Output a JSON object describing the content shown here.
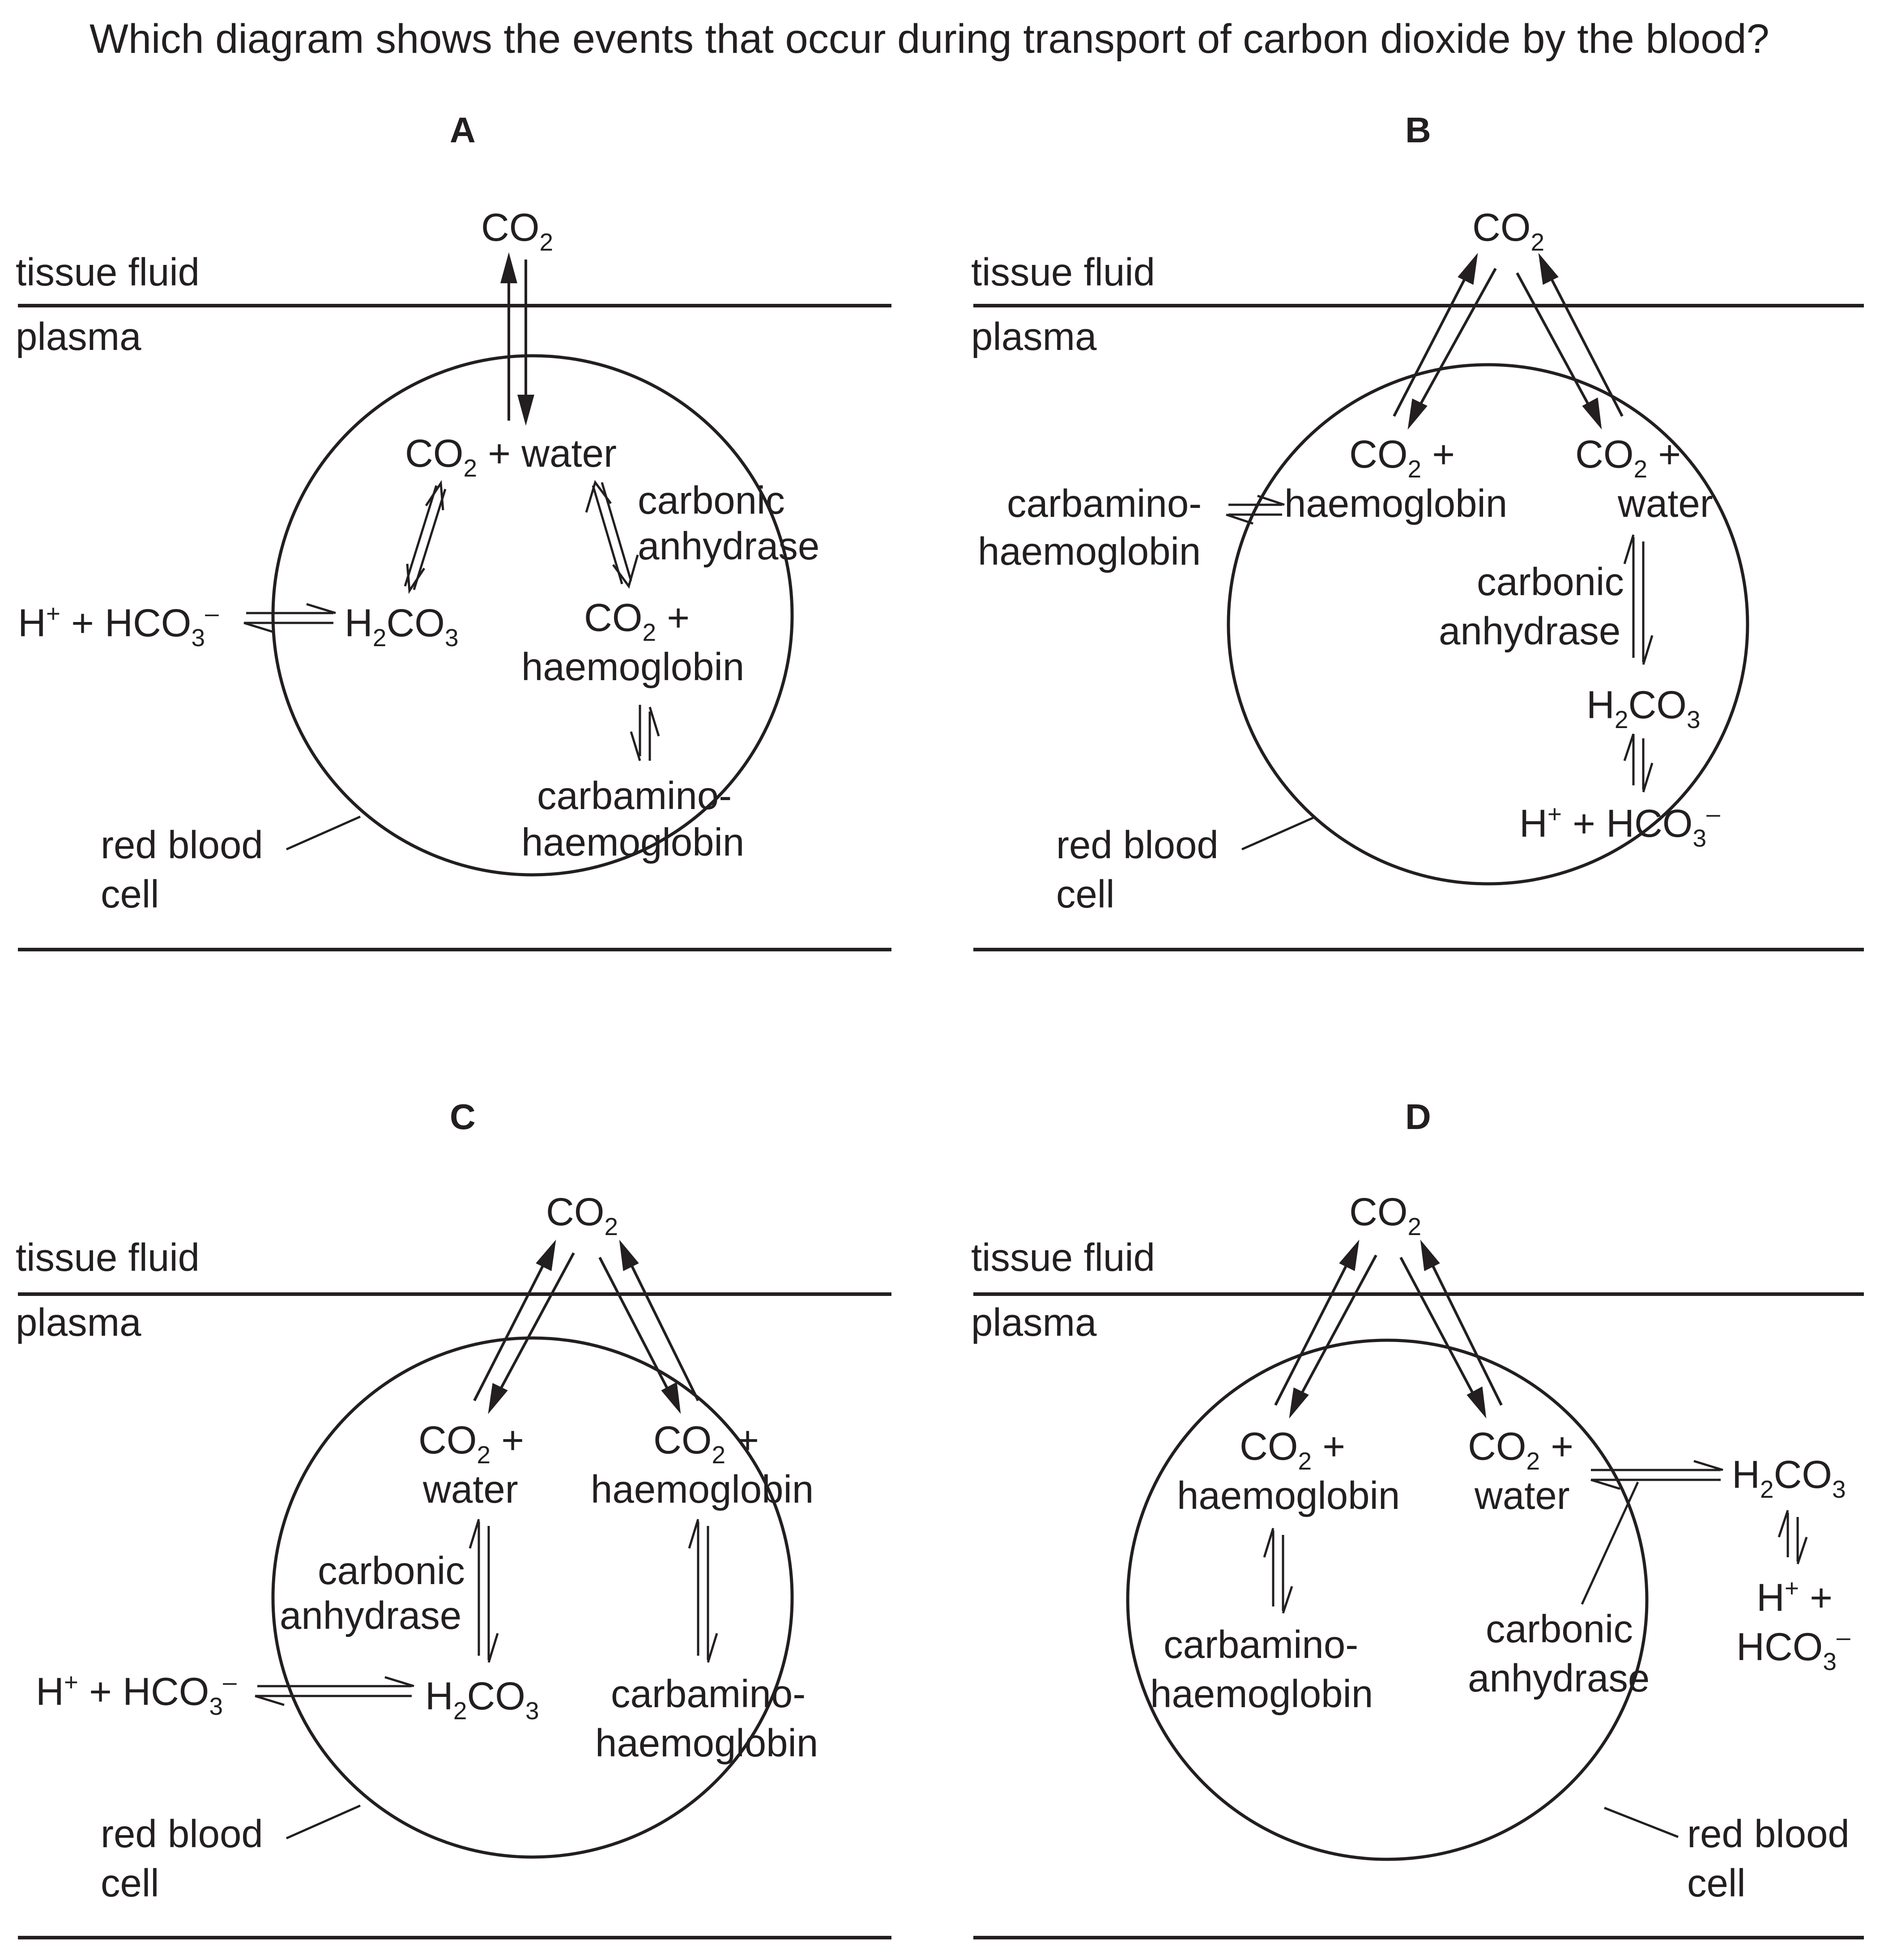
{
  "question": "Which diagram shows the events that occur during transport of carbon dioxide by the blood?",
  "labels": {
    "tissue_fluid": "tissue fluid",
    "plasma": "plasma",
    "red_blood": "red blood",
    "cell": "cell",
    "carbonic": "carbonic",
    "anhydrase": "anhydrase",
    "carbamino": "carbamino-",
    "haemoglobin": "haemoglobin",
    "water": "water",
    "co2_plus_water": "+ water",
    "plus": "+",
    "co": "CO",
    "h": "H",
    "hco": "HCO",
    "h2co3_co": "CO"
  },
  "options": [
    "A",
    "B",
    "C",
    "D"
  ]
}
